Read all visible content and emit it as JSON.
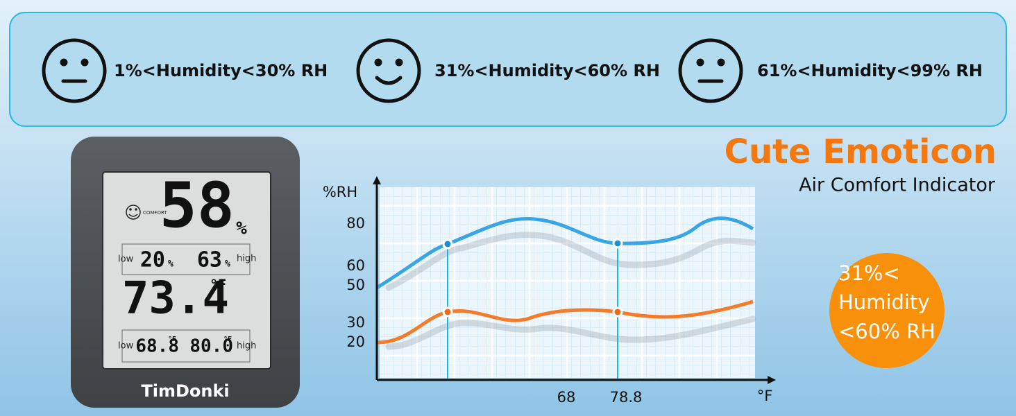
{
  "banner": {
    "items": [
      {
        "label": "1%<Humidity<30% RH"
      },
      {
        "label": "31%<Humidity<60% RH"
      },
      {
        "label": "61%<Humidity<99% RH"
      }
    ]
  },
  "device": {
    "humidity": "58",
    "humidity_unit": "%",
    "comfort": "COMFORT",
    "low_label_1": "low",
    "humidity_low": "20",
    "humidity_low_unit": "%",
    "humidity_high": "63",
    "humidity_high_unit": "%",
    "high_label_1": "high",
    "temperature": "73.4",
    "temperature_unit": "°F",
    "low_label_2": "low",
    "temp_low": "68.8",
    "temp_low_unit": "°F",
    "temp_high": "80.0",
    "temp_high_unit": "°F",
    "high_label_2": "high",
    "brand": "TimDonki"
  },
  "chart": {
    "y_label": "%RH",
    "x_label": "°F",
    "yticks": [
      "80",
      "60",
      "50",
      "30",
      "20"
    ],
    "xticks": [
      "68",
      "78.8"
    ]
  },
  "headline": {
    "title": "Cute Emoticon",
    "subtitle": "Air Comfort Indicator"
  },
  "badge": {
    "lines": [
      "31%<",
      "Humidity",
      "<60% RH"
    ]
  }
}
